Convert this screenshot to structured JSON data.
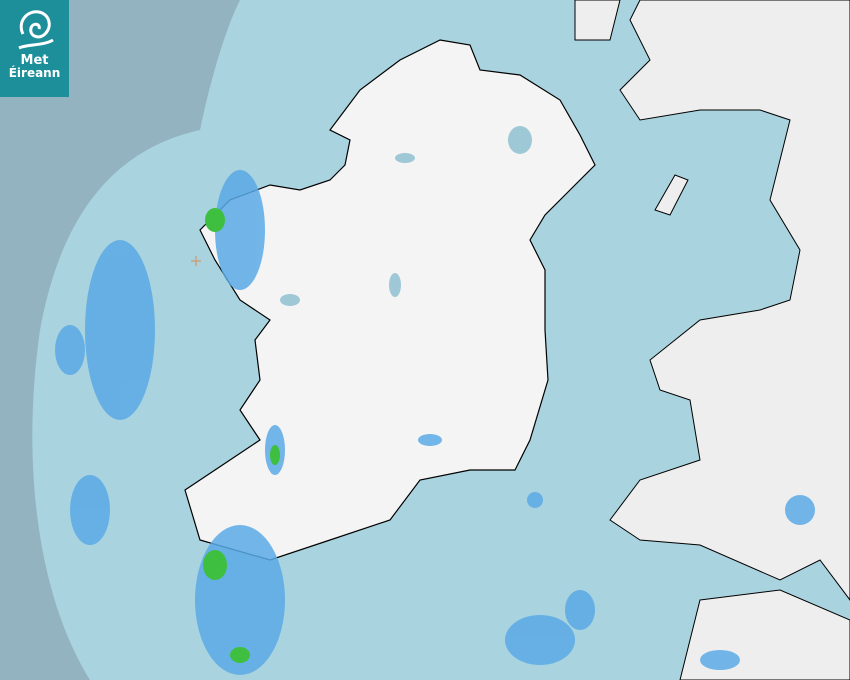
{
  "logo": {
    "line1": "Met",
    "line2": "Éireann",
    "color": "#1d8f9b"
  },
  "map": {
    "type": "rainfall-radar",
    "colors": {
      "outside_range": "#93b3c0",
      "sea": "#a9d3df",
      "land": "#f2f2f2",
      "coast": "#000000",
      "light_rain": "#5aa9e6",
      "moderate_rain": "#2f8fe0",
      "heavy_rain": "#3fbf3f"
    },
    "radar_site_marker": "plus-icon"
  }
}
